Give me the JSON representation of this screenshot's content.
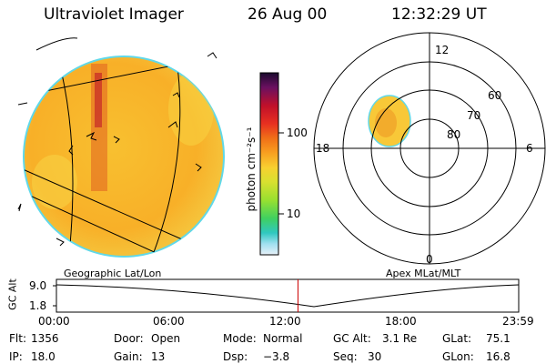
{
  "header": {
    "instrument": "Ultraviolet Imager",
    "date": "26 Aug 00",
    "time": "12:32:29 UT"
  },
  "colorbar": {
    "unit_label": "photon cm⁻²s⁻¹",
    "ticks": [
      "100",
      "10"
    ],
    "colors": [
      "#1a0a2e",
      "#6a1060",
      "#c0102a",
      "#e83020",
      "#f07018",
      "#f8a020",
      "#f8d030",
      "#d8e030",
      "#98e030",
      "#40d060",
      "#30c8c0",
      "#a0e0f0",
      "#e8f0f8"
    ]
  },
  "left_image": {
    "caption": "Geographic Lat/Lon"
  },
  "polar_plot": {
    "caption": "Apex MLat/MLT",
    "mlt_labels": [
      "12",
      "18",
      "6",
      "0"
    ],
    "mlat_labels": [
      "60",
      "70",
      "80"
    ]
  },
  "altitude_plot": {
    "ylabel": "GC Alt",
    "yticks": [
      "9.0",
      "1.8"
    ],
    "xticks": [
      "00:00",
      "06:00",
      "12:00",
      "18:00",
      "23:59"
    ],
    "cursor_time": "12:32",
    "cursor_color": "#cc0000"
  },
  "status": {
    "flt_label": "Flt:",
    "flt_value": "1356",
    "door_label": "Door:",
    "door_value": "Open",
    "mode_label": "Mode:",
    "mode_value": "Normal",
    "gcalt_label": "GC Alt:",
    "gcalt_value": "3.1 Re",
    "glat_label": "GLat:",
    "glat_value": "75.1",
    "ip_label": "IP:",
    "ip_value": "18.0",
    "gain_label": "Gain:",
    "gain_value": "13",
    "dsp_label": "Dsp:",
    "dsp_value": "−3.8",
    "seq_label": "Seq:",
    "seq_value": "30",
    "glon_label": "GLon:",
    "glon_value": "16.8"
  }
}
